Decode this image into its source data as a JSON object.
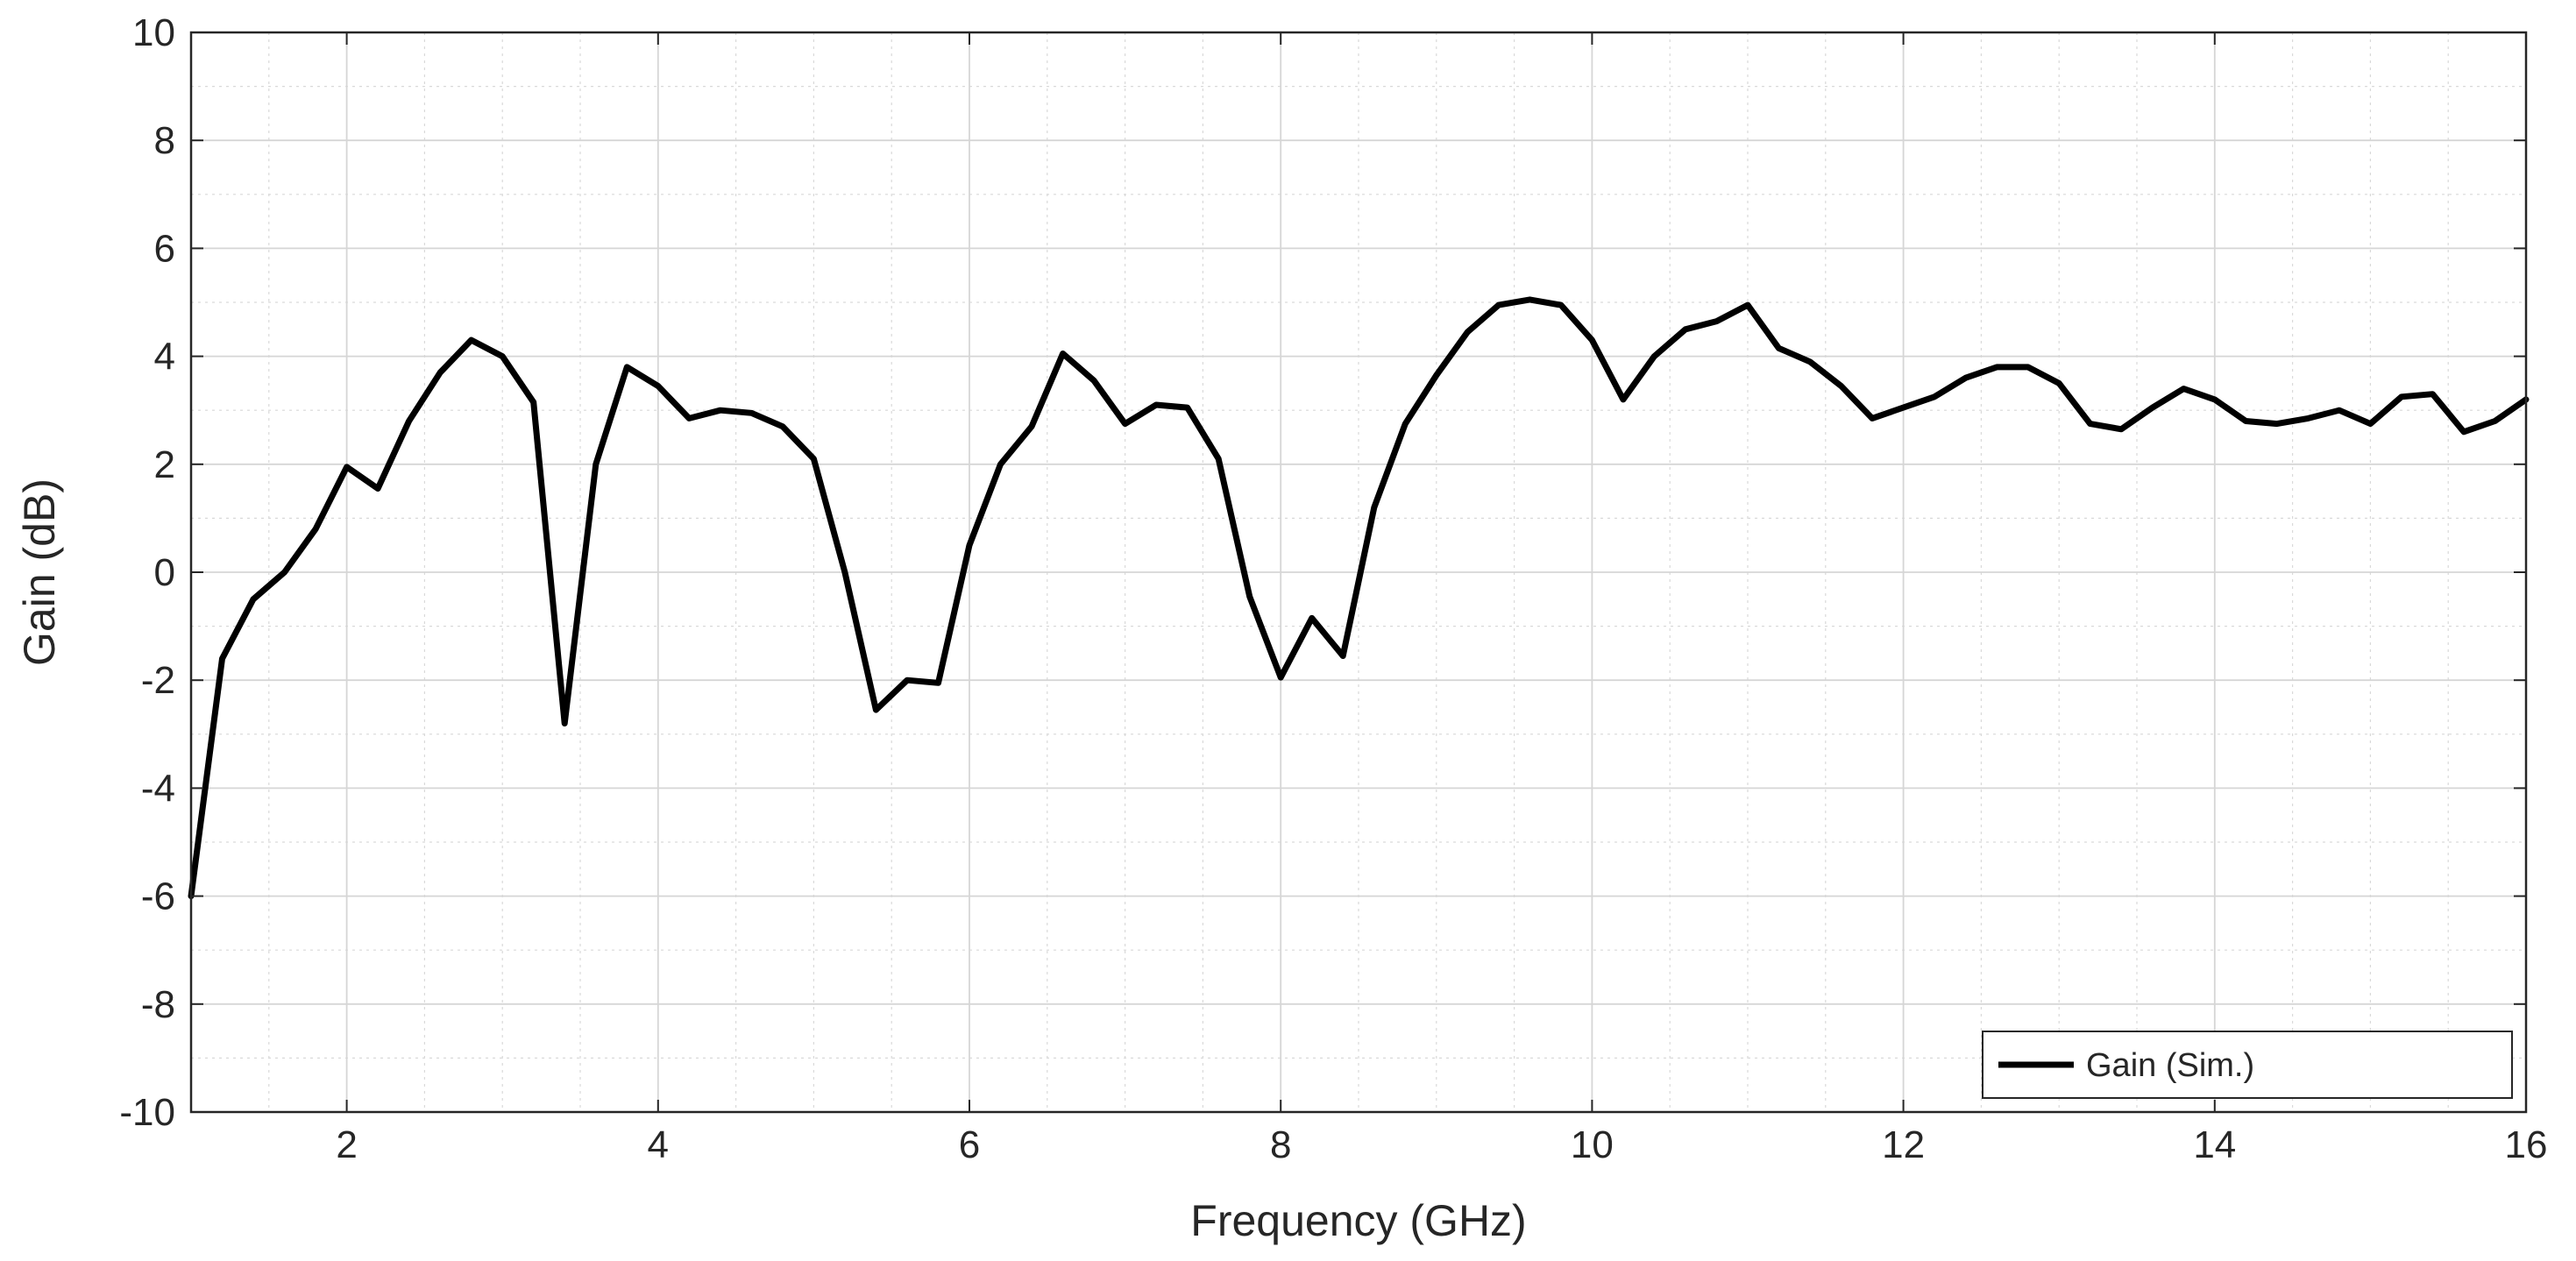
{
  "chart_data": {
    "type": "line",
    "title": "",
    "xlabel": "Frequency (GHz)",
    "ylabel": "Gain (dB)",
    "xlim": [
      1,
      16
    ],
    "ylim": [
      -10,
      10
    ],
    "x_ticks": [
      2,
      4,
      6,
      8,
      10,
      12,
      14,
      16
    ],
    "y_ticks": [
      -10,
      -8,
      -6,
      -4,
      -2,
      0,
      2,
      4,
      6,
      8,
      10
    ],
    "grid": true,
    "minor_grid": true,
    "legend_position": "bottom-right",
    "series": [
      {
        "name": "Gain (Sim.)",
        "color": "#000000",
        "x": [
          1.0,
          1.2,
          1.4,
          1.6,
          1.8,
          2.0,
          2.2,
          2.4,
          2.6,
          2.8,
          3.0,
          3.2,
          3.4,
          3.6,
          3.8,
          4.0,
          4.2,
          4.4,
          4.6,
          4.8,
          5.0,
          5.2,
          5.4,
          5.6,
          5.8,
          6.0,
          6.2,
          6.4,
          6.6,
          6.8,
          7.0,
          7.2,
          7.4,
          7.6,
          7.8,
          8.0,
          8.2,
          8.4,
          8.6,
          8.8,
          9.0,
          9.2,
          9.4,
          9.6,
          9.8,
          10.0,
          10.2,
          10.4,
          10.6,
          10.8,
          11.0,
          11.2,
          11.4,
          11.6,
          11.8,
          12.0,
          12.2,
          12.4,
          12.6,
          12.8,
          13.0,
          13.2,
          13.4,
          13.6,
          13.8,
          14.0,
          14.2,
          14.4,
          14.6,
          14.8,
          15.0,
          15.2,
          15.4,
          15.6,
          15.8,
          16.0
        ],
        "y": [
          -6.0,
          -1.6,
          -0.5,
          0.0,
          0.8,
          1.95,
          1.55,
          2.8,
          3.7,
          4.3,
          4.0,
          3.15,
          -2.8,
          2.0,
          3.8,
          3.45,
          2.85,
          3.0,
          2.95,
          2.7,
          2.1,
          0.0,
          -2.55,
          -2.0,
          -2.05,
          0.5,
          2.0,
          2.7,
          4.05,
          3.55,
          2.75,
          3.1,
          3.05,
          2.1,
          -0.45,
          -1.95,
          -0.85,
          -1.55,
          1.2,
          2.75,
          3.65,
          4.45,
          4.95,
          5.05,
          4.95,
          4.3,
          3.2,
          4.0,
          4.5,
          4.65,
          4.95,
          4.15,
          3.9,
          3.45,
          2.85,
          3.05,
          3.25,
          3.6,
          3.8,
          3.8,
          3.5,
          2.75,
          2.65,
          3.05,
          3.4,
          3.2,
          2.8,
          2.75,
          2.85,
          3.0,
          2.75,
          3.25,
          3.3,
          2.6,
          2.8,
          3.2
        ]
      }
    ]
  }
}
